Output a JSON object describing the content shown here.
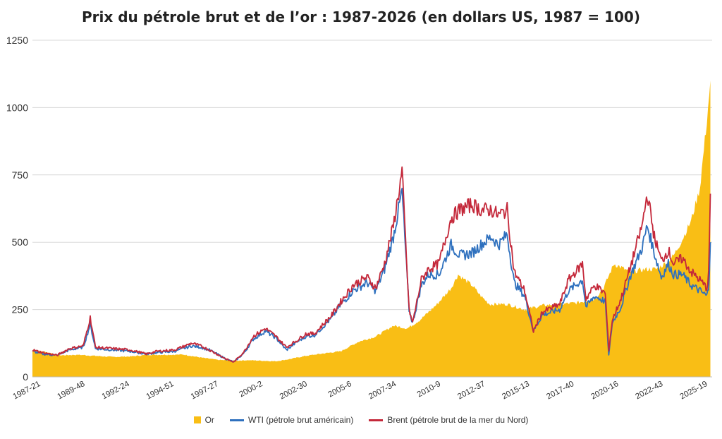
{
  "chart_data": {
    "type": "line",
    "title": "Prix du pétrole brut et de l’or : 1987-2026 (en dollars US, 1987 = 100)",
    "xlabel": "",
    "ylabel": "",
    "ylim": [
      0,
      1250
    ],
    "yticks": [
      0,
      250,
      500,
      750,
      1000,
      1250
    ],
    "xticks": [
      "1987-21",
      "1989-48",
      "1992-24",
      "1994-51",
      "1997-27",
      "2000-2",
      "2002-30",
      "2005-6",
      "2007-34",
      "2010-9",
      "2012-37",
      "2015-13",
      "2017-40",
      "2020-16",
      "2022-43",
      "2025-19"
    ],
    "xlim": [
      1987.4,
      2026.2
    ],
    "grid": true,
    "legend_position": "bottom",
    "series": [
      {
        "name": "Or",
        "style": "area",
        "color": "#F9BE15",
        "x": [
          1987.4,
          1988.0,
          1989.0,
          1990.0,
          1991.0,
          1992.0,
          1993.0,
          1994.0,
          1995.0,
          1996.0,
          1997.0,
          1998.0,
          1999.0,
          1999.7,
          2000.5,
          2001.3,
          2002.0,
          2003.0,
          2004.0,
          2005.0,
          2006.0,
          2007.0,
          2008.0,
          2008.8,
          2009.5,
          2010.5,
          2011.3,
          2011.7,
          2012.5,
          2013.0,
          2013.5,
          2014.5,
          2015.5,
          2016.5,
          2017.5,
          2018.5,
          2019.5,
          2020.0,
          2020.6,
          2021.5,
          2022.5,
          2023.0,
          2023.5,
          2024.0,
          2024.5,
          2025.0,
          2025.5,
          2025.9,
          2026.1
        ],
        "values": [
          100,
          95,
          80,
          82,
          78,
          74,
          76,
          82,
          82,
          83,
          72,
          63,
          60,
          62,
          60,
          58,
          65,
          78,
          87,
          95,
          130,
          150,
          190,
          180,
          210,
          270,
          330,
          380,
          340,
          300,
          270,
          270,
          250,
          265,
          270,
          275,
          290,
          330,
          420,
          390,
          400,
          400,
          420,
          450,
          510,
          580,
          700,
          950,
          1100
        ]
      },
      {
        "name": "WTI (pétrole brut américain)",
        "style": "line",
        "color": "#2E70BE",
        "x": [
          1987.4,
          1988.0,
          1988.8,
          1989.5,
          1990.3,
          1990.7,
          1991.0,
          1992.0,
          1993.0,
          1993.9,
          1994.5,
          1995.5,
          1996.5,
          1997.0,
          1997.5,
          1998.5,
          1998.9,
          1999.5,
          2000.0,
          2000.7,
          2001.3,
          2001.9,
          2002.5,
          2003.0,
          2003.5,
          2004.5,
          2004.9,
          2005.7,
          2006.5,
          2007.0,
          2007.5,
          2008.0,
          2008.5,
          2008.9,
          2009.1,
          2009.6,
          2010.0,
          2010.6,
          2011.3,
          2011.8,
          2012.5,
          2013.0,
          2013.6,
          2014.0,
          2014.5,
          2014.9,
          2015.5,
          2016.0,
          2016.5,
          2017.5,
          2018.0,
          2018.8,
          2019.0,
          2019.5,
          2020.1,
          2020.3,
          2020.5,
          2021.0,
          2021.5,
          2022.2,
          2022.5,
          2022.9,
          2023.3,
          2023.7,
          2024.0,
          2024.5,
          2025.0,
          2025.5,
          2025.9,
          2026.0,
          2026.1
        ],
        "values": [
          95,
          85,
          80,
          100,
          110,
          195,
          105,
          100,
          95,
          85,
          90,
          95,
          115,
          110,
          100,
          65,
          55,
          90,
          140,
          170,
          145,
          100,
          130,
          150,
          155,
          220,
          260,
          320,
          350,
          320,
          400,
          520,
          690,
          250,
          200,
          340,
          380,
          380,
          490,
          450,
          460,
          490,
          520,
          490,
          530,
          350,
          300,
          170,
          230,
          250,
          320,
          360,
          260,
          300,
          280,
          80,
          200,
          260,
          370,
          480,
          560,
          460,
          370,
          420,
          380,
          380,
          340,
          320,
          300,
          330,
          500
        ]
      },
      {
        "name": "Brent (pétrole brut de la mer du Nord)",
        "style": "line",
        "color": "#C4283A",
        "x": [
          1987.4,
          1988.0,
          1988.8,
          1989.5,
          1990.3,
          1990.7,
          1991.0,
          1992.0,
          1993.0,
          1993.9,
          1994.5,
          1995.5,
          1996.5,
          1997.0,
          1997.5,
          1998.5,
          1998.9,
          1999.5,
          2000.0,
          2000.7,
          2001.3,
          2001.9,
          2002.5,
          2003.0,
          2003.5,
          2004.5,
          2004.9,
          2005.7,
          2006.5,
          2007.0,
          2007.5,
          2008.0,
          2008.5,
          2008.9,
          2009.1,
          2009.6,
          2010.0,
          2010.6,
          2011.3,
          2011.8,
          2012.5,
          2013.0,
          2013.6,
          2014.0,
          2014.5,
          2014.9,
          2015.5,
          2016.0,
          2016.5,
          2017.5,
          2018.0,
          2018.8,
          2019.0,
          2019.5,
          2020.1,
          2020.3,
          2020.5,
          2021.0,
          2021.5,
          2022.2,
          2022.5,
          2022.9,
          2023.3,
          2023.7,
          2024.0,
          2024.5,
          2025.0,
          2025.5,
          2025.9,
          2026.0,
          2026.1
        ],
        "values": [
          100,
          90,
          80,
          105,
          115,
          220,
          110,
          105,
          100,
          85,
          95,
          100,
          125,
          115,
          100,
          65,
          55,
          95,
          150,
          180,
          150,
          110,
          135,
          160,
          160,
          230,
          270,
          340,
          370,
          330,
          420,
          560,
          760,
          250,
          200,
          360,
          400,
          420,
          590,
          620,
          640,
          620,
          620,
          600,
          620,
          390,
          320,
          170,
          240,
          270,
          360,
          420,
          290,
          340,
          310,
          100,
          210,
          290,
          400,
          560,
          680,
          520,
          430,
          470,
          420,
          440,
          390,
          360,
          330,
          380,
          680
        ]
      }
    ]
  }
}
